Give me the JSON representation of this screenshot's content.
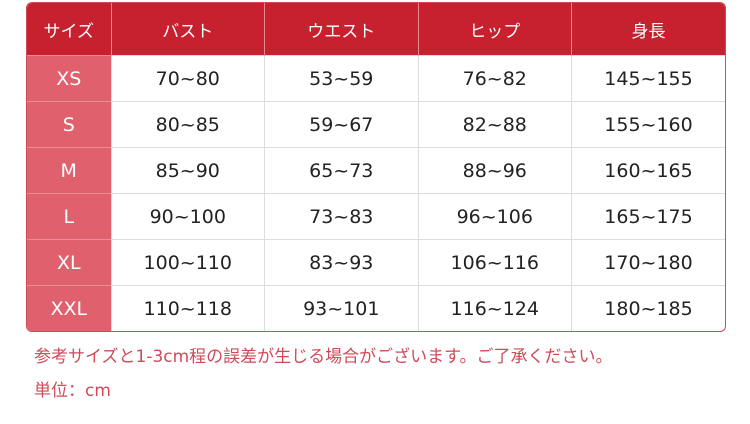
{
  "table": {
    "headers": [
      "サイズ",
      "バスト",
      "ウエスト",
      "ヒップ",
      "身長"
    ],
    "rows": [
      [
        "XS",
        "70~80",
        "53~59",
        "76~82",
        "145~155"
      ],
      [
        "S",
        "80~85",
        "59~67",
        "82~88",
        "155~160"
      ],
      [
        "M",
        "85~90",
        "65~73",
        "88~96",
        "160~165"
      ],
      [
        "L",
        "90~100",
        "73~83",
        "96~106",
        "165~175"
      ],
      [
        "XL",
        "100~110",
        "83~93",
        "106~116",
        "170~180"
      ],
      [
        "XXL",
        "110~118",
        "93~101",
        "116~124",
        "180~185"
      ]
    ]
  },
  "notes": {
    "disclaimer": "参考サイズと1-3cm程の誤差が生じる場合がございます。ご了承ください。",
    "unit": "単位：cm"
  },
  "colors": {
    "header": "#c7202f",
    "size_column": "#e0606d",
    "note_text": "#d04a5a"
  }
}
